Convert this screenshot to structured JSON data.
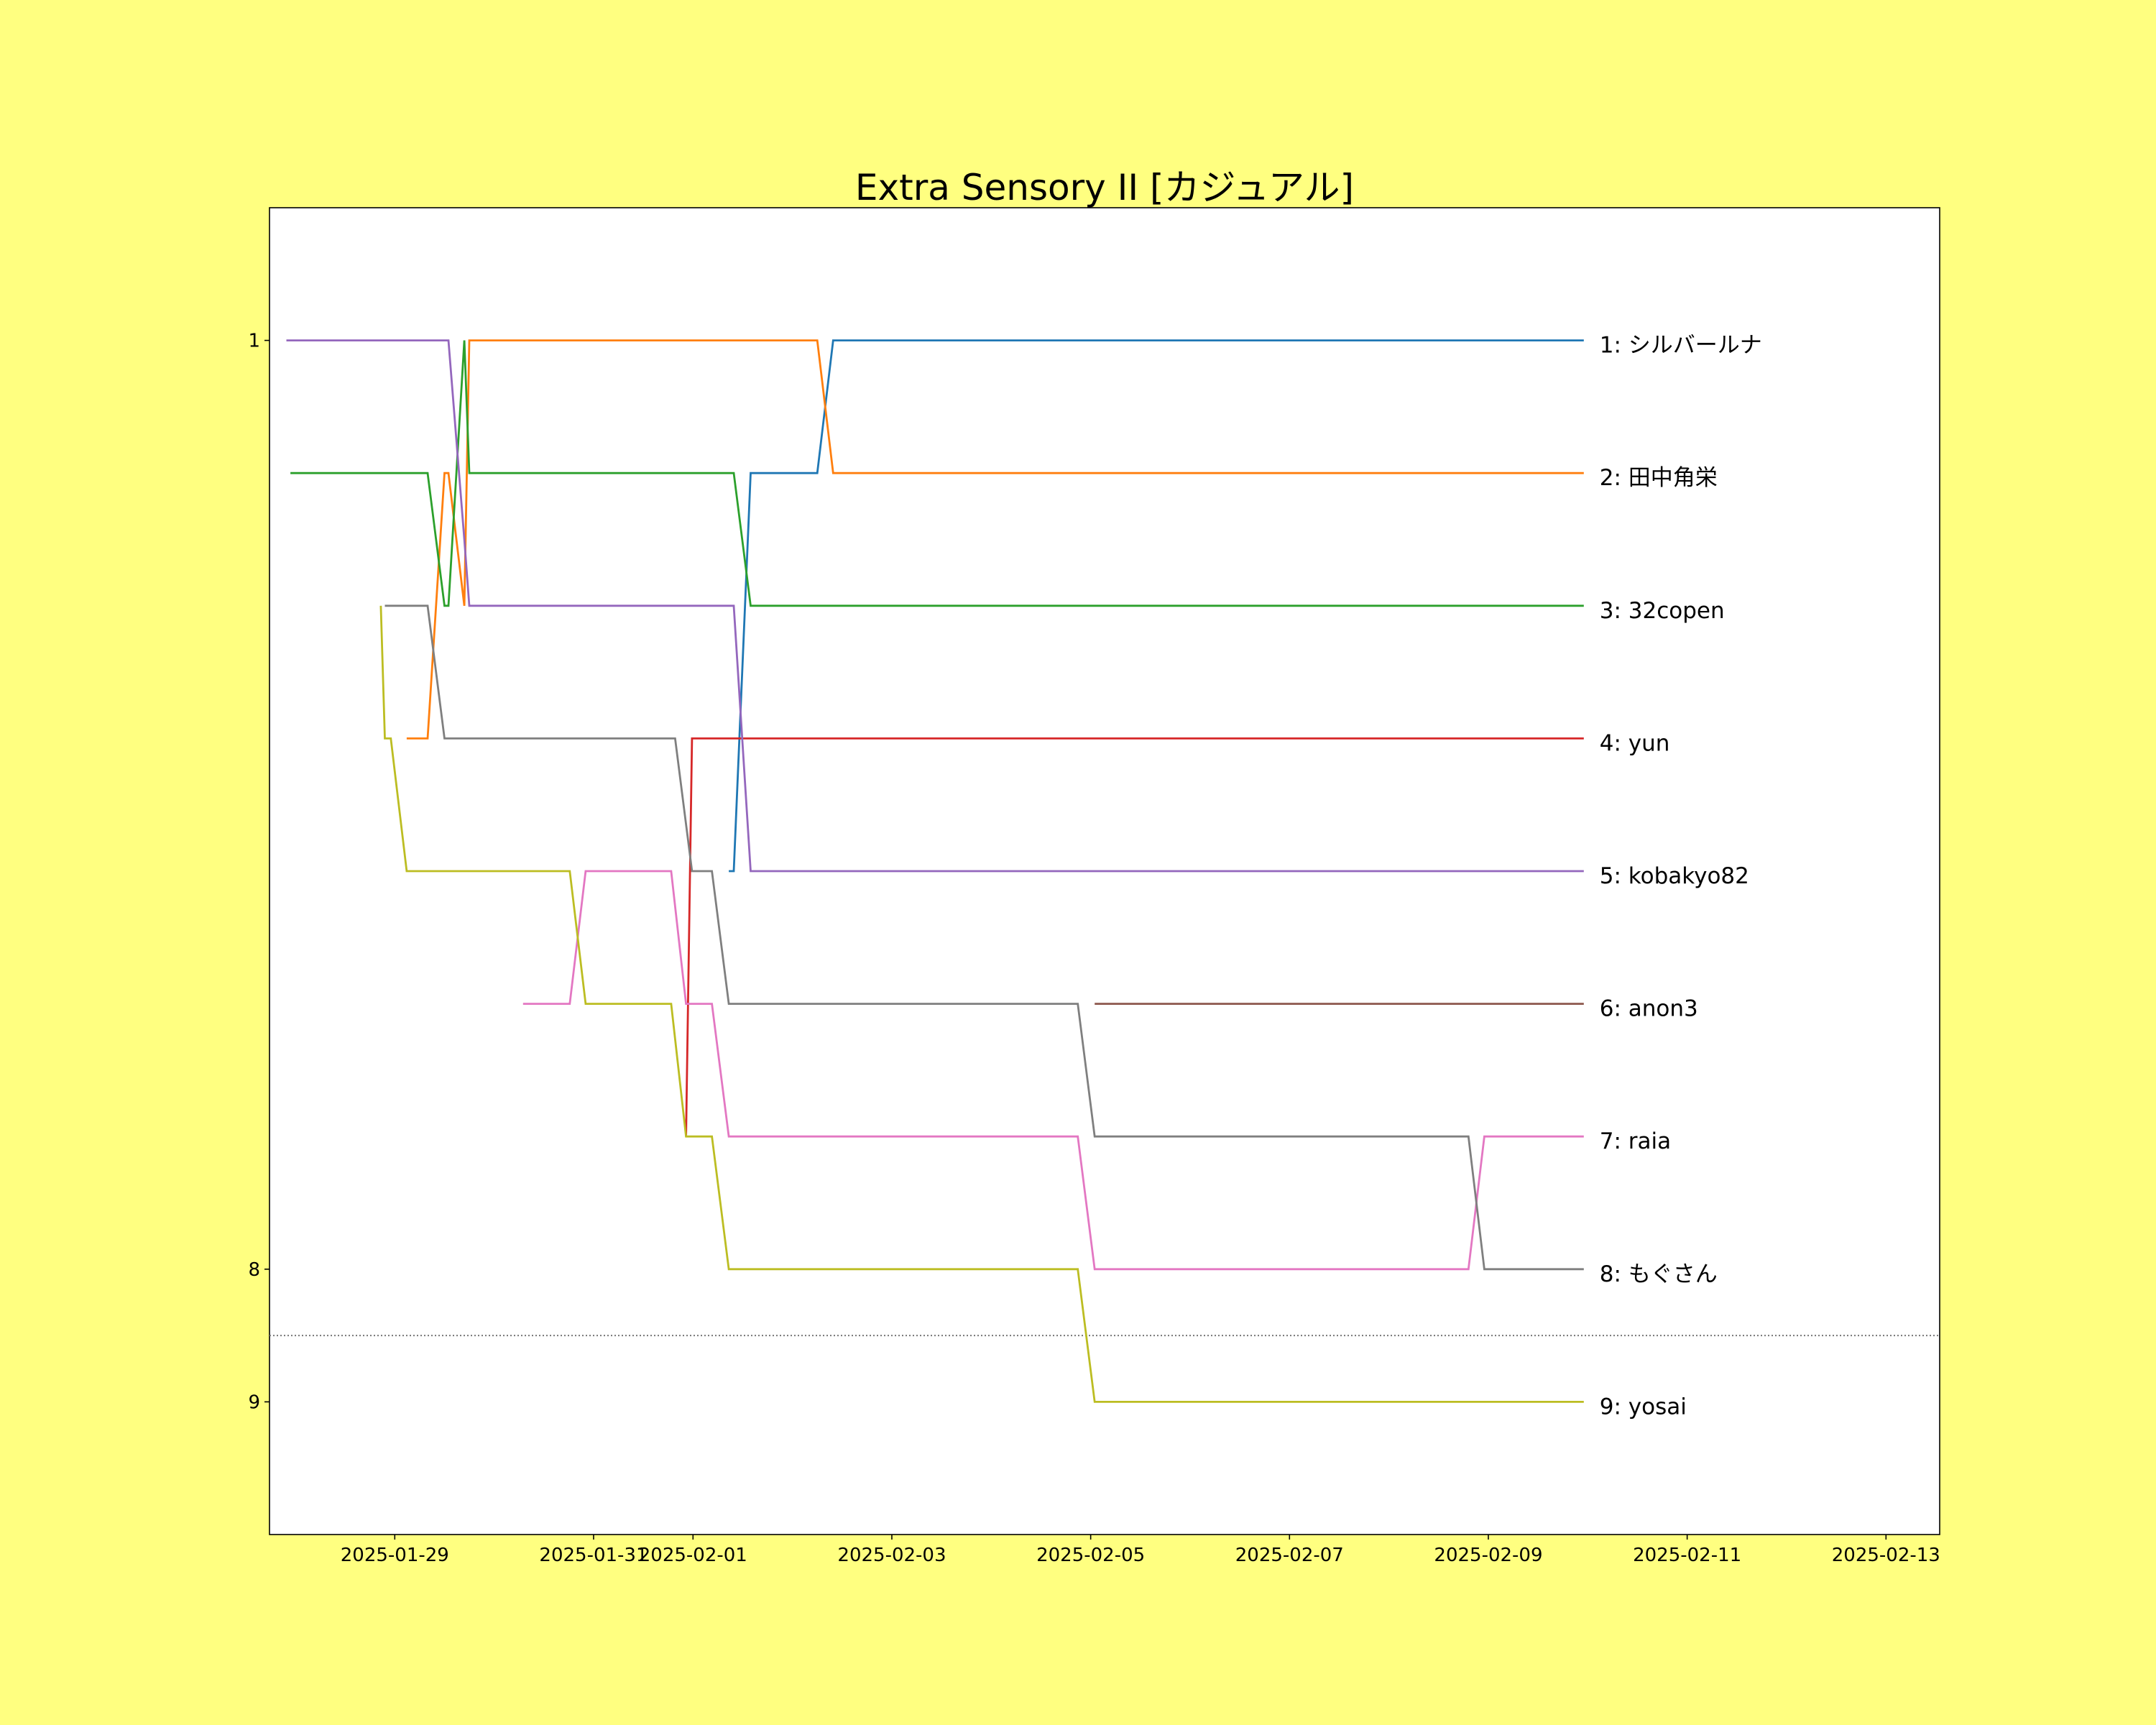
{
  "chart_data": {
    "type": "line",
    "title": "Extra Sensory II [カジュアル]",
    "xlabel": "",
    "ylabel": "",
    "x_unit": "days since 2025-01-29",
    "xlim": [
      -1.26,
      15.54
    ],
    "ylim": [
      10,
      0
    ],
    "x_ticks": [
      {
        "value": 0,
        "label": "2025-01-29"
      },
      {
        "value": 2,
        "label": "2025-01-31"
      },
      {
        "value": 3,
        "label": "2025-02-01"
      },
      {
        "value": 5,
        "label": "2025-02-03"
      },
      {
        "value": 7,
        "label": "2025-02-05"
      },
      {
        "value": 9,
        "label": "2025-02-07"
      },
      {
        "value": 11,
        "label": "2025-02-09"
      },
      {
        "value": 13,
        "label": "2025-02-11"
      },
      {
        "value": 15,
        "label": "2025-02-13"
      }
    ],
    "y_ticks": [
      {
        "value": 1,
        "label": "1"
      },
      {
        "value": 8,
        "label": "8"
      },
      {
        "value": 9,
        "label": "9"
      }
    ],
    "cutoff_line": 8.5,
    "grid": false,
    "background": "#ffff80",
    "series": [
      {
        "name": "シルバールナ",
        "label": "1: シルバールナ",
        "color": "#1f77b4",
        "points": [
          [
            3.36,
            5
          ],
          [
            3.41,
            5
          ],
          [
            3.58,
            2
          ],
          [
            4.25,
            2
          ],
          [
            4.41,
            1
          ],
          [
            11.96,
            1
          ]
        ]
      },
      {
        "name": "田中角栄",
        "label": "2: 田中角栄",
        "color": "#ff7f0e",
        "points": [
          [
            0.12,
            4
          ],
          [
            0.33,
            4
          ],
          [
            0.5,
            2
          ],
          [
            0.54,
            2
          ],
          [
            0.7,
            3
          ],
          [
            0.75,
            1
          ],
          [
            4.25,
            1
          ],
          [
            4.41,
            2
          ],
          [
            11.96,
            2
          ]
        ]
      },
      {
        "name": "32copen",
        "label": "3: 32copen",
        "color": "#2ca02c",
        "points": [
          [
            -1.05,
            2
          ],
          [
            0.33,
            2
          ],
          [
            0.5,
            3
          ],
          [
            0.54,
            3
          ],
          [
            0.7,
            1
          ],
          [
            0.75,
            2
          ],
          [
            3.41,
            2
          ],
          [
            3.58,
            3
          ],
          [
            11.96,
            3
          ]
        ]
      },
      {
        "name": "yun",
        "label": "4: yun",
        "color": "#d62728",
        "points": [
          [
            2.93,
            7
          ],
          [
            2.99,
            4
          ],
          [
            11.96,
            4
          ]
        ]
      },
      {
        "name": "kobakyo82",
        "label": "5: kobakyo82",
        "color": "#9467bd",
        "points": [
          [
            -1.09,
            1
          ],
          [
            0.54,
            1
          ],
          [
            0.7,
            2.5
          ],
          [
            0.75,
            3
          ],
          [
            3.41,
            3
          ],
          [
            3.58,
            5
          ],
          [
            11.96,
            5
          ]
        ]
      },
      {
        "name": "anon3",
        "label": "6: anon3",
        "color": "#8c564b",
        "points": [
          [
            7.04,
            6
          ],
          [
            11.96,
            6
          ]
        ]
      },
      {
        "name": "raia",
        "label": "7: raia",
        "color": "#e377c2",
        "points": [
          [
            1.29,
            6
          ],
          [
            1.76,
            6
          ],
          [
            1.92,
            5
          ],
          [
            2.78,
            5
          ],
          [
            2.93,
            6
          ],
          [
            3.19,
            6
          ],
          [
            3.36,
            7
          ],
          [
            6.87,
            7
          ],
          [
            7.04,
            8
          ],
          [
            10.8,
            8
          ],
          [
            10.96,
            7
          ],
          [
            11.96,
            7
          ]
        ]
      },
      {
        "name": "もぐさん",
        "label": "8: もぐさん",
        "color": "#7f7f7f",
        "points": [
          [
            -0.1,
            3
          ],
          [
            0.33,
            3
          ],
          [
            0.5,
            4
          ],
          [
            2.82,
            4
          ],
          [
            2.99,
            5
          ],
          [
            3.19,
            5
          ],
          [
            3.36,
            6
          ],
          [
            6.87,
            6
          ],
          [
            7.04,
            7
          ],
          [
            10.8,
            7
          ],
          [
            10.96,
            8
          ],
          [
            11.96,
            8
          ]
        ]
      },
      {
        "name": "yosai",
        "label": "9: yosai",
        "color": "#bcbd22",
        "points": [
          [
            -0.14,
            3
          ],
          [
            -0.1,
            4
          ],
          [
            -0.04,
            4
          ],
          [
            0.12,
            5
          ],
          [
            1.76,
            5
          ],
          [
            1.92,
            6
          ],
          [
            2.78,
            6
          ],
          [
            2.93,
            7
          ],
          [
            3.19,
            7
          ],
          [
            3.36,
            8
          ],
          [
            6.87,
            8
          ],
          [
            7.04,
            9
          ],
          [
            11.96,
            9
          ]
        ]
      }
    ]
  }
}
